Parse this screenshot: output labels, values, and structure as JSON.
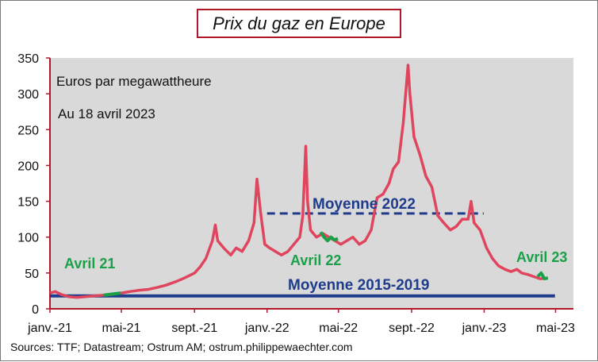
{
  "chart_data": {
    "type": "line",
    "title": "Prix du gaz en Europe",
    "notes": [
      "Euros par megawattheure",
      "Au 18 avril 2023"
    ],
    "source": "Sources: TTF;  Datastream;  Ostrum AM; ostrum.philippewaechter.com",
    "x_range": [
      "2021-01-01",
      "2023-05-31"
    ],
    "ylim": [
      0,
      350
    ],
    "y_ticks": [
      0,
      50,
      100,
      150,
      200,
      250,
      300,
      350
    ],
    "x_ticks": [
      {
        "date": "2021-01-01",
        "label": "janv.-21"
      },
      {
        "date": "2021-05-01",
        "label": "mai-21"
      },
      {
        "date": "2021-09-01",
        "label": "sept.-21"
      },
      {
        "date": "2022-01-01",
        "label": "janv.-22"
      },
      {
        "date": "2022-05-01",
        "label": "mai-22"
      },
      {
        "date": "2022-09-01",
        "label": "sept.-22"
      },
      {
        "date": "2023-01-01",
        "label": "janv.-23"
      },
      {
        "date": "2023-05-01",
        "label": "mai-23"
      }
    ],
    "grid": false,
    "series": [
      {
        "color": "#e0455e",
        "x": [
          "2021-01-01",
          "2021-01-10",
          "2021-01-20",
          "2021-02-01",
          "2021-02-15",
          "2021-03-01",
          "2021-03-15",
          "2021-04-01",
          "2021-04-15",
          "2021-05-01",
          "2021-05-15",
          "2021-06-01",
          "2021-06-15",
          "2021-07-01",
          "2021-07-15",
          "2021-08-01",
          "2021-08-15",
          "2021-09-01",
          "2021-09-10",
          "2021-09-20",
          "2021-10-01",
          "2021-10-06",
          "2021-10-10",
          "2021-10-20",
          "2021-11-01",
          "2021-11-10",
          "2021-11-20",
          "2021-12-01",
          "2021-12-10",
          "2021-12-15",
          "2021-12-21",
          "2021-12-28",
          "2022-01-05",
          "2022-01-15",
          "2022-01-25",
          "2022-02-05",
          "2022-02-15",
          "2022-02-25",
          "2022-03-02",
          "2022-03-07",
          "2022-03-10",
          "2022-03-15",
          "2022-03-25",
          "2022-04-05",
          "2022-04-15",
          "2022-04-25",
          "2022-05-05",
          "2022-05-15",
          "2022-05-25",
          "2022-06-05",
          "2022-06-15",
          "2022-06-25",
          "2022-07-05",
          "2022-07-15",
          "2022-07-25",
          "2022-08-01",
          "2022-08-10",
          "2022-08-18",
          "2022-08-26",
          "2022-08-29",
          "2022-09-05",
          "2022-09-15",
          "2022-09-25",
          "2022-10-05",
          "2022-10-15",
          "2022-10-25",
          "2022-11-05",
          "2022-11-15",
          "2022-11-25",
          "2022-12-05",
          "2022-12-10",
          "2022-12-15",
          "2022-12-25",
          "2023-01-05",
          "2023-01-15",
          "2023-01-25",
          "2023-02-05",
          "2023-02-15",
          "2023-02-25",
          "2023-03-05",
          "2023-03-15",
          "2023-03-25",
          "2023-04-05",
          "2023-04-18"
        ],
        "y": [
          22,
          24,
          20,
          17,
          16,
          17,
          18,
          19,
          20,
          22,
          24,
          26,
          27,
          30,
          33,
          38,
          43,
          50,
          58,
          70,
          95,
          117,
          95,
          85,
          75,
          85,
          80,
          95,
          120,
          181,
          135,
          90,
          85,
          80,
          75,
          80,
          90,
          100,
          130,
          227,
          150,
          110,
          100,
          105,
          100,
          95,
          90,
          95,
          100,
          90,
          95,
          110,
          155,
          160,
          175,
          195,
          205,
          260,
          340,
          300,
          240,
          215,
          185,
          170,
          130,
          120,
          110,
          115,
          125,
          125,
          150,
          120,
          110,
          85,
          70,
          60,
          55,
          52,
          55,
          50,
          48,
          45,
          42,
          43
        ]
      }
    ],
    "highlight_segments": [
      {
        "label": "Avril 21",
        "color": "#1aa048",
        "x_from": "2021-04-01",
        "x_to": "2021-04-30",
        "y": [
          19,
          20,
          21,
          22
        ]
      },
      {
        "label": "Avril 22",
        "color": "#1aa048",
        "x_from": "2022-04-01",
        "x_to": "2022-04-30",
        "y": [
          107,
          100,
          95,
          100,
          96,
          98
        ]
      },
      {
        "label": "Avril 23",
        "color": "#1aa048",
        "x_from": "2023-04-01",
        "x_to": "2023-04-18",
        "y": [
          45,
          50,
          42,
          43
        ]
      }
    ],
    "reference_lines": [
      {
        "label": "Moyenne 2022",
        "y": 133,
        "x_from": "2022-01-01",
        "x_to": "2022-12-31",
        "color": "#1f3c8c",
        "style": "dashed"
      },
      {
        "label": "Moyenne 2015-2019",
        "y": 18,
        "x_from": "2021-01-01",
        "x_to": "2023-04-30",
        "color": "#1f3c8c",
        "style": "solid"
      }
    ]
  }
}
